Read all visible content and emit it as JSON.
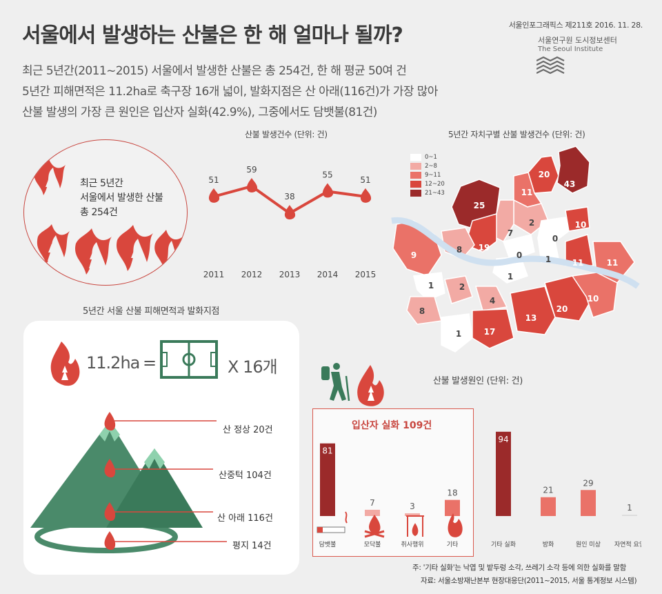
{
  "header": {
    "title": "서울에서 발생하는 산불은 한 해 얼마나 될까?",
    "subtitles": [
      "최근 5년간(2011~2015) 서울에서 발생한 산불은 총 254건, 한 해 평균 50여 건",
      "5년간 피해면적은 11.2ha로 축구장 16개 넓이, 발화지점은 산 아래(116건)가 가장 많아",
      "산불 발생의 가장 큰 원인은 입산자 실화(42.9%), 그중에서도 담뱃불(81건)"
    ],
    "series_info": "서울인포그래픽스 제211호 2016. 11. 28.",
    "org_name_ko": "서울연구원 도시정보센터",
    "org_name_en": "The Seoul Institute"
  },
  "total_circle": {
    "line1": "최근 5년간",
    "line2": "서울에서 발생한 산불",
    "line3": "총 254건"
  },
  "area_section": {
    "title": "5년간 서울 산불 피해면적과 발화지점",
    "area_value": "11.2ha",
    "equals": "=",
    "times_text": "X 16개",
    "ignition_points": [
      {
        "label": "산 정상 20건",
        "count": 20
      },
      {
        "label": "산중턱 104건",
        "count": 104
      },
      {
        "label": "산 아래 116건",
        "count": 116
      },
      {
        "label": "평지 14건",
        "count": 14
      }
    ]
  },
  "map_section": {
    "title": "5년간 자치구별 산불 발생건수 (단위: 건)",
    "legend": [
      {
        "label": "0~1",
        "color": "#ffffff"
      },
      {
        "label": "2~8",
        "color": "#f2aaa4"
      },
      {
        "label": "9~11",
        "color": "#ea7268"
      },
      {
        "label": "12~20",
        "color": "#d9473d"
      },
      {
        "label": "21~43",
        "color": "#9b2a2a"
      }
    ],
    "district_values": [
      "20",
      "43",
      "11",
      "25",
      "2",
      "7",
      "10",
      "19",
      "8",
      "0",
      "9",
      "0",
      "1",
      "1",
      "11",
      "11",
      "1",
      "2",
      "4",
      "20",
      "10",
      "8",
      "13",
      "17",
      "1"
    ]
  },
  "causes_section": {
    "title": "산불 발생원인 (단위: 건)",
    "box_title": "입산자 실화 109건"
  },
  "footnotes": {
    "note": "주: '기타 실화'는 낙엽 및 밭두렁 소각, 쓰레기 소각 등에 의한 실화를 말함",
    "source": "자료: 서울소방재난본부 현장대응단(2011~2015, 서울 통계정보 시스템)"
  },
  "chart_data": [
    {
      "type": "line",
      "title": "산불 발생건수 (단위: 건)",
      "x": [
        "2011",
        "2012",
        "2013",
        "2014",
        "2015"
      ],
      "values": [
        51,
        59,
        38,
        55,
        51
      ],
      "color": "#d9473d",
      "ylim": [
        0,
        70
      ]
    },
    {
      "type": "bar",
      "title": "산불 발생원인 (단위: 건)",
      "categories": [
        "담뱃불",
        "모닥불",
        "취사행위",
        "기타",
        "기타 실화",
        "방화",
        "원인 미상",
        "자연적 요인"
      ],
      "values": [
        81,
        7,
        3,
        18,
        94,
        21,
        29,
        1
      ],
      "colors": [
        "#9b2a2a",
        "#f2aaa4",
        "#f2aaa4",
        "#ea7268",
        "#9b2a2a",
        "#ea7268",
        "#ea7268",
        "#dddddd"
      ],
      "ylim": [
        0,
        100
      ]
    }
  ]
}
